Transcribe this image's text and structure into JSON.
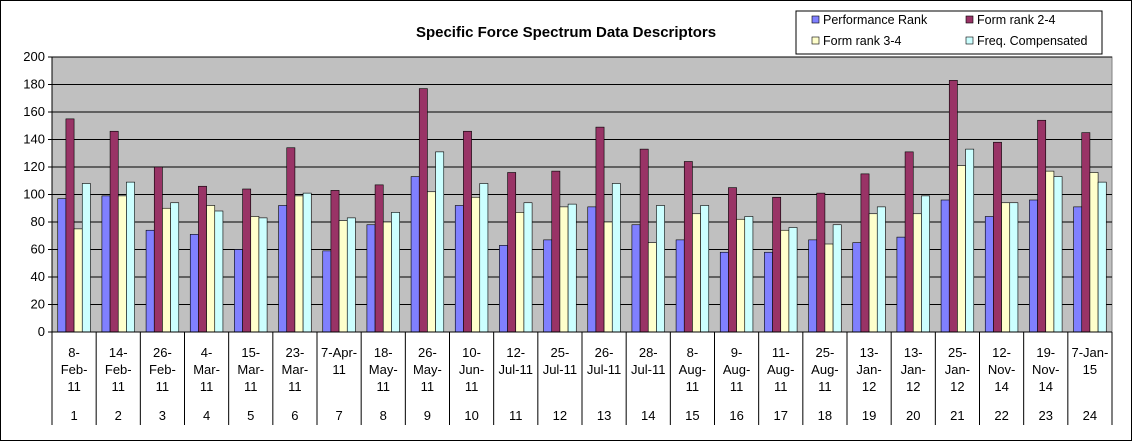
{
  "chart_data": {
    "type": "bar",
    "title": "Specific Force Spectrum Data Descriptors",
    "ylim": [
      0,
      200
    ],
    "yticks": [
      0,
      20,
      40,
      60,
      80,
      100,
      120,
      140,
      160,
      180,
      200
    ],
    "grid": true,
    "legend_position": "top-right",
    "categories": [
      {
        "date": [
          "8-",
          "Feb-",
          "11"
        ],
        "num": "1"
      },
      {
        "date": [
          "14-",
          "Feb-",
          "11"
        ],
        "num": "2"
      },
      {
        "date": [
          "26-",
          "Feb-",
          "11"
        ],
        "num": "3"
      },
      {
        "date": [
          "4-",
          "Mar-",
          "11"
        ],
        "num": "4"
      },
      {
        "date": [
          "15-",
          "Mar-",
          "11"
        ],
        "num": "5"
      },
      {
        "date": [
          "23-",
          "Mar-",
          "11"
        ],
        "num": "6"
      },
      {
        "date": [
          "7-Apr-",
          "11"
        ],
        "num": "7"
      },
      {
        "date": [
          "18-",
          "May-",
          "11"
        ],
        "num": "8"
      },
      {
        "date": [
          "26-",
          "May-",
          "11"
        ],
        "num": "9"
      },
      {
        "date": [
          "10-",
          "Jun-",
          "11"
        ],
        "num": "10"
      },
      {
        "date": [
          "12-",
          "Jul-11"
        ],
        "num": "11"
      },
      {
        "date": [
          "25-",
          "Jul-11"
        ],
        "num": "12"
      },
      {
        "date": [
          "26-",
          "Jul-11"
        ],
        "num": "13"
      },
      {
        "date": [
          "28-",
          "Jul-11"
        ],
        "num": "14"
      },
      {
        "date": [
          "8-",
          "Aug-",
          "11"
        ],
        "num": "15"
      },
      {
        "date": [
          "9-",
          "Aug-",
          "11"
        ],
        "num": "16"
      },
      {
        "date": [
          "11-",
          "Aug-",
          "11"
        ],
        "num": "17"
      },
      {
        "date": [
          "25-",
          "Aug-",
          "11"
        ],
        "num": "18"
      },
      {
        "date": [
          "13-",
          "Jan-",
          "12"
        ],
        "num": "19"
      },
      {
        "date": [
          "13-",
          "Jan-",
          "12"
        ],
        "num": "20"
      },
      {
        "date": [
          "25-",
          "Jan-",
          "12"
        ],
        "num": "21"
      },
      {
        "date": [
          "12-",
          "Nov-",
          "14"
        ],
        "num": "22"
      },
      {
        "date": [
          "19-",
          "Nov-",
          "14"
        ],
        "num": "23"
      },
      {
        "date": [
          "7-Jan-",
          "15"
        ],
        "num": "24"
      }
    ],
    "series": [
      {
        "name": "Performance Rank",
        "color": "#8080ff",
        "values": [
          97,
          99,
          74,
          71,
          60,
          92,
          59,
          78,
          113,
          92,
          63,
          67,
          91,
          78,
          67,
          58,
          58,
          67,
          65,
          69,
          96,
          84,
          96,
          91
        ]
      },
      {
        "name": "Form rank 2-4",
        "color": "#993366",
        "values": [
          155,
          146,
          120,
          106,
          104,
          134,
          103,
          107,
          177,
          146,
          116,
          117,
          149,
          133,
          124,
          105,
          98,
          101,
          115,
          131,
          183,
          138,
          154,
          145
        ]
      },
      {
        "name": "Form rank 3-4",
        "color": "#ffffcc",
        "values": [
          75,
          99,
          90,
          92,
          84,
          99,
          81,
          80,
          102,
          98,
          87,
          91,
          80,
          65,
          86,
          82,
          74,
          64,
          86,
          86,
          121,
          94,
          117,
          116
        ]
      },
      {
        "name": "Freq. Compensated",
        "color": "#ccffff",
        "values": [
          108,
          109,
          94,
          88,
          83,
          101,
          83,
          87,
          131,
          108,
          94,
          93,
          108,
          92,
          92,
          84,
          76,
          78,
          91,
          99,
          133,
          94,
          113,
          109
        ]
      }
    ]
  }
}
